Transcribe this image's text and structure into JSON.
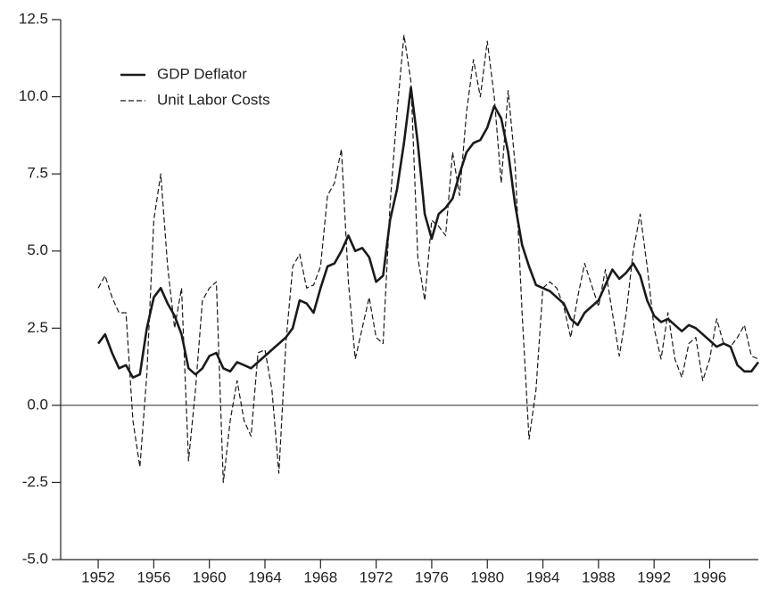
{
  "chart_data": {
    "type": "line",
    "x": [
      1952,
      1952.5,
      1953,
      1953.5,
      1954,
      1954.5,
      1955,
      1955.5,
      1956,
      1956.5,
      1957,
      1957.5,
      1958,
      1958.5,
      1959,
      1959.5,
      1960,
      1960.5,
      1961,
      1961.5,
      1962,
      1962.5,
      1963,
      1963.5,
      1964,
      1964.5,
      1965,
      1965.5,
      1966,
      1966.5,
      1967,
      1967.5,
      1968,
      1968.5,
      1969,
      1969.5,
      1970,
      1970.5,
      1971,
      1971.5,
      1972,
      1972.5,
      1973,
      1973.5,
      1974,
      1974.5,
      1975,
      1975.5,
      1976,
      1976.5,
      1977,
      1977.5,
      1978,
      1978.5,
      1979,
      1979.5,
      1980,
      1980.5,
      1981,
      1981.5,
      1982,
      1982.5,
      1983,
      1983.5,
      1984,
      1984.5,
      1985,
      1985.5,
      1986,
      1986.5,
      1987,
      1987.5,
      1988,
      1988.5,
      1989,
      1989.5,
      1990,
      1990.5,
      1991,
      1991.5,
      1992,
      1992.5,
      1993,
      1993.5,
      1994,
      1994.5,
      1995,
      1995.5,
      1996,
      1996.5,
      1997,
      1997.5,
      1998,
      1998.5,
      1999,
      1999.5
    ],
    "series": [
      {
        "name": "GDP Deflator",
        "color": "#1a1a1a",
        "linestyle": "solid",
        "values": [
          2.0,
          2.3,
          1.7,
          1.2,
          1.3,
          0.9,
          1.0,
          2.5,
          3.5,
          3.8,
          3.3,
          2.9,
          2.3,
          1.2,
          1.0,
          1.2,
          1.6,
          1.7,
          1.2,
          1.1,
          1.4,
          1.3,
          1.2,
          1.4,
          1.6,
          1.8,
          2.0,
          2.2,
          2.5,
          3.4,
          3.3,
          3.0,
          3.8,
          4.5,
          4.6,
          5.0,
          5.5,
          5.0,
          5.1,
          4.8,
          4.0,
          4.2,
          6.0,
          7.0,
          8.5,
          10.3,
          8.5,
          6.2,
          5.4,
          6.2,
          6.4,
          6.7,
          7.5,
          8.2,
          8.5,
          8.6,
          9.0,
          9.7,
          9.3,
          8.2,
          6.5,
          5.2,
          4.5,
          3.9,
          3.8,
          3.7,
          3.5,
          3.3,
          2.8,
          2.6,
          3.0,
          3.2,
          3.4,
          3.9,
          4.4,
          4.1,
          4.3,
          4.6,
          4.2,
          3.4,
          2.9,
          2.7,
          2.8,
          2.6,
          2.4,
          2.6,
          2.5,
          2.3,
          2.1,
          1.9,
          2.0,
          1.9,
          1.3,
          1.1,
          1.1,
          1.4
        ]
      },
      {
        "name": "Unit Labor Costs",
        "color": "#1a1a1a",
        "linestyle": "dashed",
        "values": [
          3.8,
          4.2,
          3.5,
          3.0,
          3.0,
          -0.5,
          -2.0,
          1.0,
          6.0,
          7.5,
          4.5,
          2.5,
          3.8,
          -1.8,
          0.5,
          3.4,
          3.8,
          4.0,
          -2.5,
          -0.5,
          0.8,
          -0.5,
          -1.0,
          1.7,
          1.8,
          0.5,
          -2.2,
          2.0,
          4.5,
          4.9,
          3.8,
          3.9,
          4.5,
          6.8,
          7.2,
          8.3,
          4.0,
          1.5,
          2.5,
          3.5,
          2.2,
          2.0,
          6.5,
          9.5,
          12.0,
          10.5,
          4.8,
          3.4,
          6.0,
          5.8,
          5.5,
          8.2,
          6.8,
          9.5,
          11.2,
          10.0,
          11.8,
          10.0,
          7.2,
          10.2,
          7.8,
          3.0,
          -1.1,
          0.5,
          3.8,
          4.0,
          3.8,
          3.2,
          2.2,
          3.5,
          4.6,
          3.9,
          3.2,
          4.4,
          3.0,
          1.6,
          3.0,
          5.0,
          6.2,
          4.5,
          2.5,
          1.5,
          3.0,
          1.5,
          0.9,
          2.0,
          2.2,
          0.8,
          1.5,
          2.8,
          2.0,
          1.9,
          2.2,
          2.6,
          1.6,
          1.5
        ]
      }
    ],
    "xlim": [
      1949.3,
      1999.5
    ],
    "xticks": [
      1952,
      1956,
      1960,
      1964,
      1968,
      1972,
      1976,
      1980,
      1984,
      1988,
      1992,
      1996
    ],
    "ylim": [
      -5,
      12.5
    ],
    "yticks": [
      {
        "value": -5,
        "label": "-5.0"
      },
      -2.5,
      {
        "value": 0,
        "label": "0.0"
      },
      2.5,
      {
        "value": 5,
        "label": "5.0"
      },
      7.5,
      {
        "value": 10,
        "label": "10.0"
      },
      12.5
    ],
    "reference_line": 0,
    "legend": "upper left"
  }
}
